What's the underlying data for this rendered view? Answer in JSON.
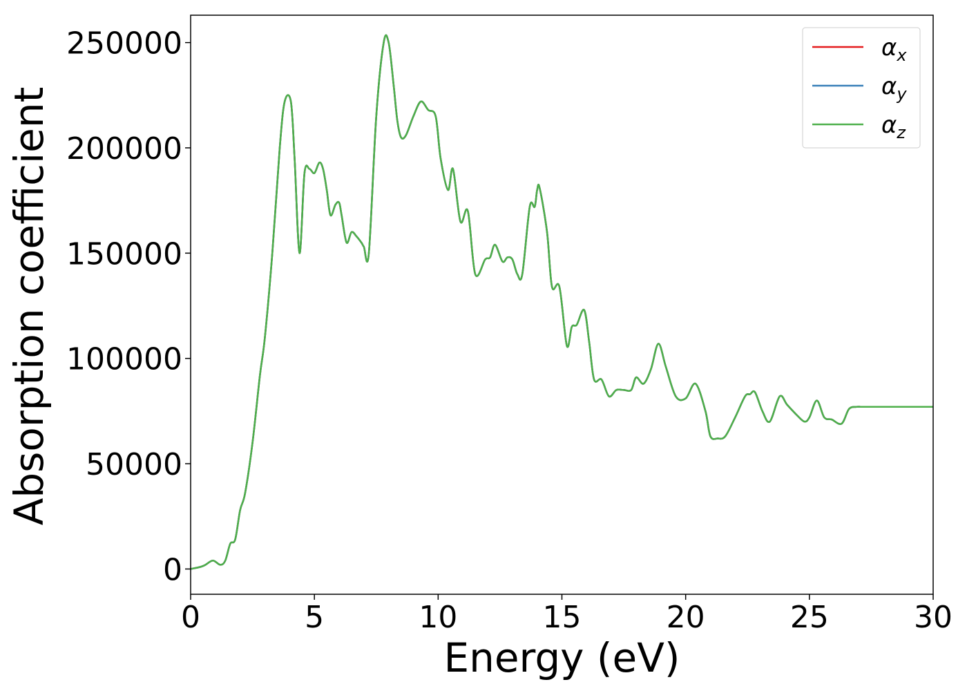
{
  "chart_data": {
    "type": "line",
    "xlabel": "Energy (eV)",
    "ylabel": "Absorption coefficient",
    "xlim": [
      0,
      30
    ],
    "ylim": [
      -12000,
      263000
    ],
    "xticks": [
      0,
      5,
      10,
      15,
      20,
      25,
      30
    ],
    "xtick_labels": [
      "0",
      "5",
      "10",
      "15",
      "20",
      "25",
      "30"
    ],
    "yticks": [
      0,
      50000,
      100000,
      150000,
      200000,
      250000
    ],
    "ytick_labels": [
      "0",
      "50000",
      "100000",
      "150000",
      "200000",
      "250000"
    ],
    "grid": false,
    "legend_position": "top-right",
    "x": [
      0,
      0.4,
      0.6,
      0.9,
      1.2,
      1.4,
      1.6,
      1.8,
      2.0,
      2.2,
      2.5,
      2.8,
      3.0,
      3.3,
      3.6,
      3.8,
      4.05,
      4.2,
      4.4,
      4.6,
      4.8,
      5.0,
      5.2,
      5.35,
      5.5,
      5.65,
      5.85,
      6.0,
      6.1,
      6.3,
      6.5,
      6.7,
      6.9,
      7.0,
      7.2,
      7.5,
      7.8,
      8.0,
      8.2,
      8.35,
      8.5,
      8.7,
      9.0,
      9.3,
      9.6,
      9.9,
      10.1,
      10.4,
      10.6,
      10.9,
      11.2,
      11.5,
      11.9,
      12.1,
      12.3,
      12.6,
      12.8,
      13.0,
      13.2,
      13.4,
      13.7,
      13.9,
      14.0,
      14.1,
      14.4,
      14.6,
      14.9,
      15.2,
      15.4,
      15.6,
      15.9,
      16.1,
      16.3,
      16.6,
      16.9,
      17.2,
      17.5,
      17.8,
      18.0,
      18.3,
      18.6,
      18.9,
      19.2,
      19.6,
      20.0,
      20.4,
      20.8,
      21.0,
      21.3,
      21.6,
      22.0,
      22.4,
      22.6,
      22.8,
      23.1,
      23.4,
      23.8,
      24.1,
      24.5,
      24.8,
      25.0,
      25.3,
      25.6,
      25.9,
      26.3,
      26.6,
      26.9,
      27.1,
      27.4,
      27.7,
      28.0,
      28.3,
      28.5,
      28.7,
      28.9,
      29.1,
      29.4,
      29.7,
      30.0
    ],
    "series": [
      {
        "name": "α_x",
        "color": "#e41a1c",
        "values": [
          0,
          1000,
          2000,
          4000,
          2000,
          4000,
          12000,
          14000,
          28000,
          36000,
          60000,
          92000,
          110000,
          150000,
          200000,
          222000,
          222000,
          195000,
          150000,
          188000,
          190000,
          188000,
          193000,
          190000,
          180000,
          168000,
          173000,
          174000,
          168000,
          155000,
          160000,
          158000,
          155000,
          153000,
          150000,
          215000,
          250000,
          250000,
          230000,
          213000,
          205000,
          206000,
          215000,
          222000,
          218000,
          215000,
          195000,
          180000,
          190000,
          165000,
          170000,
          140000,
          147000,
          148000,
          154000,
          146000,
          148000,
          147000,
          140000,
          140000,
          172000,
          172000,
          180000,
          181000,
          160000,
          134000,
          134000,
          106000,
          115000,
          116000,
          123000,
          108000,
          90000,
          90000,
          82000,
          85000,
          85000,
          85000,
          91000,
          88000,
          95000,
          107000,
          96000,
          82000,
          81000,
          88000,
          75000,
          63000,
          62000,
          63000,
          72000,
          82000,
          83000,
          84000,
          75000,
          70000,
          82000,
          78000,
          73000,
          70000,
          72000,
          80000,
          72000,
          71000,
          69000,
          76000,
          77000,
          77000,
          77000,
          77000,
          77000,
          77000,
          77000,
          77000,
          77000,
          77000,
          77000,
          77000,
          77000
        ]
      },
      {
        "name": "α_y",
        "color": "#377eb8",
        "values": [
          0,
          1000,
          2000,
          4000,
          2000,
          4000,
          12000,
          14000,
          28000,
          36000,
          60000,
          92000,
          110000,
          150000,
          200000,
          222000,
          222000,
          195000,
          150000,
          188000,
          190000,
          188000,
          193000,
          190000,
          180000,
          168000,
          173000,
          174000,
          168000,
          155000,
          160000,
          158000,
          155000,
          153000,
          150000,
          215000,
          250000,
          250000,
          230000,
          213000,
          205000,
          206000,
          215000,
          222000,
          218000,
          215000,
          195000,
          180000,
          190000,
          165000,
          170000,
          140000,
          147000,
          148000,
          154000,
          146000,
          148000,
          147000,
          140000,
          140000,
          172000,
          172000,
          180000,
          181000,
          160000,
          134000,
          134000,
          106000,
          115000,
          116000,
          123000,
          108000,
          90000,
          90000,
          82000,
          85000,
          85000,
          85000,
          91000,
          88000,
          95000,
          107000,
          96000,
          82000,
          81000,
          88000,
          75000,
          63000,
          62000,
          63000,
          72000,
          82000,
          83000,
          84000,
          75000,
          70000,
          82000,
          78000,
          73000,
          70000,
          72000,
          80000,
          72000,
          71000,
          69000,
          76000,
          77000,
          77000,
          77000,
          77000,
          77000,
          77000,
          77000,
          77000,
          77000,
          77000,
          77000,
          77000,
          77000
        ]
      },
      {
        "name": "α_z",
        "color": "#4daf4a",
        "values": [
          0,
          1000,
          2000,
          4000,
          2000,
          4000,
          12000,
          14000,
          28000,
          36000,
          60000,
          92000,
          110000,
          150000,
          200000,
          222000,
          222000,
          195000,
          150000,
          188000,
          190000,
          188000,
          193000,
          190000,
          180000,
          168000,
          173000,
          174000,
          168000,
          155000,
          160000,
          158000,
          155000,
          153000,
          150000,
          215000,
          250000,
          250000,
          230000,
          213000,
          205000,
          206000,
          215000,
          222000,
          218000,
          215000,
          195000,
          180000,
          190000,
          165000,
          170000,
          140000,
          147000,
          148000,
          154000,
          146000,
          148000,
          147000,
          140000,
          140000,
          172000,
          172000,
          180000,
          181000,
          160000,
          134000,
          134000,
          106000,
          115000,
          116000,
          123000,
          108000,
          90000,
          90000,
          82000,
          85000,
          85000,
          85000,
          91000,
          88000,
          95000,
          107000,
          96000,
          82000,
          81000,
          88000,
          75000,
          63000,
          62000,
          63000,
          72000,
          82000,
          83000,
          84000,
          75000,
          70000,
          82000,
          78000,
          73000,
          70000,
          72000,
          80000,
          72000,
          71000,
          69000,
          76000,
          77000,
          77000,
          77000,
          77000,
          77000,
          77000,
          77000,
          77000,
          77000,
          77000,
          77000,
          77000,
          77000
        ]
      }
    ],
    "legend": [
      {
        "symbol": "α",
        "sub": "x",
        "color": "#e41a1c"
      },
      {
        "symbol": "α",
        "sub": "y",
        "color": "#377eb8"
      },
      {
        "symbol": "α",
        "sub": "z",
        "color": "#4daf4a"
      }
    ]
  }
}
